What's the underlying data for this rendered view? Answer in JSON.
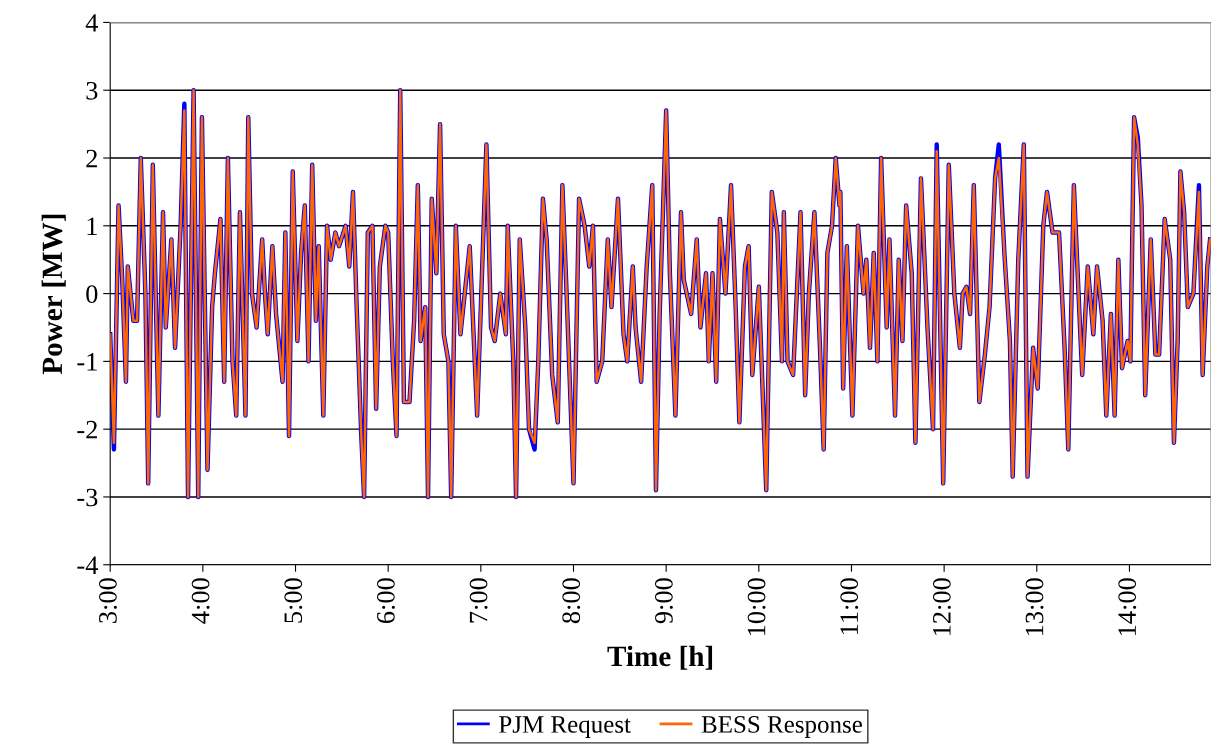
{
  "chart_data": {
    "type": "line",
    "xlabel": "Time [h]",
    "ylabel": "Power [MW]",
    "x": [
      3.0,
      3.04,
      3.09,
      3.13,
      3.17,
      3.19,
      3.25,
      3.29,
      3.33,
      3.38,
      3.41,
      3.46,
      3.52,
      3.57,
      3.6,
      3.66,
      3.7,
      3.76,
      3.8,
      3.84,
      3.9,
      3.95,
      3.99,
      4.05,
      4.1,
      4.13,
      4.19,
      4.23,
      4.27,
      4.32,
      4.36,
      4.4,
      4.46,
      4.49,
      4.53,
      4.58,
      4.64,
      4.67,
      4.7,
      4.75,
      4.79,
      4.86,
      4.89,
      4.93,
      4.97,
      5.02,
      5.06,
      5.1,
      5.14,
      5.18,
      5.22,
      5.25,
      5.3,
      5.34,
      5.38,
      5.43,
      5.47,
      5.54,
      5.58,
      5.62,
      5.66,
      5.71,
      5.74,
      5.78,
      5.83,
      5.87,
      5.91,
      5.97,
      6.0,
      6.05,
      6.09,
      6.13,
      6.17,
      6.23,
      6.28,
      6.32,
      6.35,
      6.4,
      6.43,
      6.47,
      6.52,
      6.56,
      6.6,
      6.65,
      6.68,
      6.73,
      6.78,
      6.88,
      6.96,
      7.06,
      7.11,
      7.15,
      7.21,
      7.27,
      7.29,
      7.35,
      7.38,
      7.42,
      7.48,
      7.52,
      7.58,
      7.62,
      7.67,
      7.71,
      7.77,
      7.83,
      7.88,
      7.92,
      8.0,
      8.06,
      8.12,
      8.17,
      8.21,
      8.25,
      8.31,
      8.37,
      8.41,
      8.48,
      8.54,
      8.58,
      8.64,
      8.67,
      8.73,
      8.79,
      8.85,
      8.89,
      8.93,
      9.0,
      9.04,
      9.1,
      9.16,
      9.19,
      9.27,
      9.33,
      9.37,
      9.43,
      9.46,
      9.5,
      9.54,
      9.58,
      9.64,
      9.7,
      9.75,
      9.79,
      9.85,
      9.89,
      9.93,
      10.0,
      10.08,
      10.14,
      10.2,
      10.25,
      10.27,
      10.31,
      10.37,
      10.45,
      10.5,
      10.54,
      10.6,
      10.66,
      10.7,
      10.74,
      10.79,
      10.83,
      10.87,
      10.88,
      10.91,
      10.95,
      11.01,
      11.07,
      11.13,
      11.16,
      11.2,
      11.24,
      11.28,
      11.32,
      11.38,
      11.41,
      11.47,
      11.51,
      11.55,
      11.59,
      11.65,
      11.69,
      11.75,
      11.82,
      11.88,
      11.92,
      11.99,
      12.05,
      12.11,
      12.17,
      12.2,
      12.24,
      12.28,
      12.32,
      12.38,
      12.44,
      12.49,
      12.55,
      12.59,
      12.65,
      12.71,
      12.74,
      12.8,
      12.86,
      12.9,
      12.96,
      13.01,
      13.07,
      13.11,
      13.17,
      13.24,
      13.3,
      13.34,
      13.4,
      13.46,
      13.49,
      13.55,
      13.61,
      13.65,
      13.71,
      13.75,
      13.8,
      13.84,
      13.88,
      13.92,
      13.98,
      14.01,
      14.05,
      14.09,
      14.13,
      14.17,
      14.23,
      14.28,
      14.32,
      14.38,
      14.44,
      14.48,
      14.52,
      14.55,
      14.59,
      14.63,
      14.69,
      14.75,
      14.79,
      14.84,
      14.87
    ],
    "series": [
      {
        "name": "PJM Request",
        "color": "#0000ff",
        "values": [
          -0.6,
          -2.3,
          1.3,
          0.2,
          -1.3,
          0.4,
          -0.4,
          -0.4,
          2.0,
          0.0,
          -2.8,
          1.9,
          -1.8,
          1.2,
          -0.5,
          0.8,
          -0.8,
          1.0,
          2.8,
          -3.0,
          3.0,
          -3.0,
          2.6,
          -2.6,
          -0.2,
          0.3,
          1.1,
          -1.3,
          2.0,
          -1.0,
          -1.8,
          1.2,
          -1.8,
          2.6,
          0.0,
          -0.5,
          0.8,
          0.0,
          -0.6,
          0.7,
          -0.3,
          -1.3,
          0.9,
          -2.1,
          1.8,
          -0.7,
          0.6,
          1.3,
          -1.0,
          1.9,
          -0.4,
          0.7,
          -1.8,
          1.0,
          0.5,
          0.9,
          0.7,
          1.0,
          0.4,
          1.5,
          -0.2,
          -2.1,
          -3.0,
          0.9,
          1.0,
          -1.7,
          0.4,
          1.0,
          0.9,
          -1.0,
          -2.1,
          3.0,
          -1.6,
          -1.6,
          -0.4,
          1.6,
          -0.7,
          -0.2,
          -3.0,
          1.4,
          0.3,
          2.5,
          -0.6,
          -1.0,
          -3.0,
          1.0,
          -0.6,
          0.7,
          -1.8,
          2.2,
          -0.5,
          -0.7,
          0,
          -0.6,
          1.0,
          -1.0,
          -3.0,
          0.8,
          -0.5,
          -2.0,
          -2.3,
          -1.0,
          1.4,
          0.8,
          -1.2,
          -1.9,
          1.6,
          0.2,
          -2.8,
          1.4,
          1.0,
          0.4,
          1.0,
          -1.3,
          -1.0,
          0.8,
          -0.2,
          1.4,
          -0.6,
          -1.0,
          0.4,
          -0.5,
          -1.3,
          0.4,
          1.6,
          -2.9,
          -0.3,
          2.7,
          0.3,
          -1.8,
          1.2,
          0.2,
          -0.3,
          0.8,
          -0.5,
          0.3,
          -1.0,
          0.3,
          -1.3,
          1.1,
          0,
          1.6,
          -0.2,
          -1.9,
          0.4,
          0.7,
          -1.2,
          0.1,
          -2.9,
          1.5,
          0.9,
          -1.0,
          1.2,
          -1.0,
          -1.2,
          1.2,
          -1.5,
          0.0,
          1.2,
          -0.8,
          -2.3,
          0.6,
          1.0,
          2.0,
          1.3,
          1.5,
          -1.4,
          0.7,
          -1.8,
          1.0,
          0,
          0.5,
          -0.8,
          0.6,
          -1.0,
          2.0,
          -0.5,
          0.8,
          -1.8,
          0.5,
          -0.7,
          1.3,
          0.3,
          -2.2,
          1.7,
          -0.5,
          -2.0,
          2.2,
          -2.8,
          1.9,
          0,
          -0.8,
          0,
          0.1,
          -0.3,
          1.6,
          -1.6,
          -0.9,
          -0.2,
          1.7,
          2.2,
          0.6,
          -0.7,
          -2.7,
          0.5,
          2.2,
          -2.7,
          -0.8,
          -1.4,
          1.0,
          1.5,
          0.9,
          0.9,
          -0.8,
          -2.3,
          1.6,
          -0.3,
          -1.2,
          0.4,
          -0.6,
          0.4,
          -0.4,
          -1.8,
          -0.3,
          -1.8,
          0.5,
          -1.1,
          -0.7,
          -1.0,
          2.6,
          2.3,
          1.3,
          -1.5,
          0.8,
          -0.9,
          -0.9,
          1.1,
          0.5,
          -2.2,
          -0.7,
          1.8,
          1.2,
          -0.2,
          0,
          1.6,
          -1.2,
          0.4,
          0.8
        ]
      },
      {
        "name": "BESS Response",
        "color": "#ff6600",
        "values": [
          -0.6,
          -2.2,
          1.3,
          0.2,
          -1.3,
          0.4,
          -0.4,
          -0.4,
          2.0,
          0.0,
          -2.8,
          1.9,
          -1.8,
          1.2,
          -0.5,
          0.8,
          -0.8,
          1.0,
          2.7,
          -3.0,
          3.0,
          -3.0,
          2.6,
          -2.6,
          -0.2,
          0.3,
          1.1,
          -1.3,
          2.0,
          -1.0,
          -1.8,
          1.2,
          -1.8,
          2.6,
          0.0,
          -0.5,
          0.8,
          0.0,
          -0.6,
          0.7,
          -0.3,
          -1.3,
          0.9,
          -2.1,
          1.8,
          -0.7,
          0.6,
          1.3,
          -1.0,
          1.9,
          -0.4,
          0.7,
          -1.8,
          1.0,
          0.5,
          0.9,
          0.7,
          1.0,
          0.4,
          1.5,
          -0.2,
          -2.1,
          -3.0,
          0.9,
          1.0,
          -1.7,
          0.4,
          1.0,
          0.9,
          -1.0,
          -2.1,
          3.0,
          -1.6,
          -1.6,
          -0.4,
          1.6,
          -0.7,
          -0.2,
          -3.0,
          1.4,
          0.3,
          2.5,
          -0.6,
          -1.0,
          -3.0,
          1.0,
          -0.6,
          0.7,
          -1.8,
          2.2,
          -0.5,
          -0.7,
          0,
          -0.6,
          1.0,
          -1.0,
          -3.0,
          0.8,
          -0.5,
          -2.0,
          -2.2,
          -1.0,
          1.4,
          0.8,
          -1.2,
          -1.9,
          1.6,
          0.2,
          -2.8,
          1.4,
          1.0,
          0.4,
          1.0,
          -1.3,
          -1.0,
          0.8,
          -0.2,
          1.4,
          -0.6,
          -1.0,
          0.4,
          -0.5,
          -1.3,
          0.4,
          1.6,
          -2.9,
          -0.3,
          2.7,
          0.3,
          -1.8,
          1.2,
          0.2,
          -0.3,
          0.8,
          -0.5,
          0.3,
          -1.0,
          0.3,
          -1.3,
          1.1,
          0,
          1.6,
          -0.2,
          -1.9,
          0.4,
          0.7,
          -1.2,
          0.1,
          -2.9,
          1.5,
          0.9,
          -1.0,
          1.2,
          -1.0,
          -1.2,
          1.2,
          -1.5,
          0.0,
          1.2,
          -0.8,
          -2.3,
          0.6,
          1.0,
          2.0,
          1.3,
          1.5,
          -1.4,
          0.7,
          -1.8,
          1.0,
          0,
          0.5,
          -0.8,
          0.6,
          -1.0,
          2.0,
          -0.5,
          0.8,
          -1.8,
          0.5,
          -0.7,
          1.3,
          0.3,
          -2.2,
          1.7,
          -0.5,
          -2.0,
          2.1,
          -2.8,
          1.9,
          0,
          -0.8,
          0,
          0.1,
          -0.3,
          1.6,
          -1.6,
          -0.9,
          -0.2,
          1.7,
          2.0,
          0.6,
          -0.7,
          -2.7,
          0.5,
          2.2,
          -2.7,
          -0.8,
          -1.4,
          1.0,
          1.5,
          0.9,
          0.9,
          -0.8,
          -2.3,
          1.6,
          -0.3,
          -1.2,
          0.4,
          -0.6,
          0.4,
          -0.4,
          -1.8,
          -0.3,
          -1.8,
          0.5,
          -1.1,
          -0.7,
          -1.0,
          2.6,
          2.2,
          1.3,
          -1.5,
          0.8,
          -0.9,
          -0.9,
          1.1,
          0.5,
          -2.2,
          -0.7,
          1.8,
          1.2,
          -0.2,
          0,
          1.5,
          -1.2,
          0.4,
          0.8
        ]
      }
    ],
    "xlim": [
      3,
      14.88
    ],
    "xticks": [
      {
        "value": 3,
        "label": "3:00"
      },
      {
        "value": 4,
        "label": "4:00"
      },
      {
        "value": 5,
        "label": "5:00"
      },
      {
        "value": 6,
        "label": "6:00"
      },
      {
        "value": 7,
        "label": "7:00"
      },
      {
        "value": 8,
        "label": "8:00"
      },
      {
        "value": 9,
        "label": "9:00"
      },
      {
        "value": 10,
        "label": "10:00"
      },
      {
        "value": 11,
        "label": "11:00"
      },
      {
        "value": 12,
        "label": "12:00"
      },
      {
        "value": 13,
        "label": "13:00"
      },
      {
        "value": 14,
        "label": "14:00"
      }
    ],
    "ylim": [
      -4,
      4
    ],
    "yticks": [
      -4,
      -3,
      -2,
      -1,
      0,
      1,
      2,
      3,
      4
    ],
    "grid": "y",
    "legend": "bottom",
    "marker": "none",
    "line_style": "solid"
  }
}
